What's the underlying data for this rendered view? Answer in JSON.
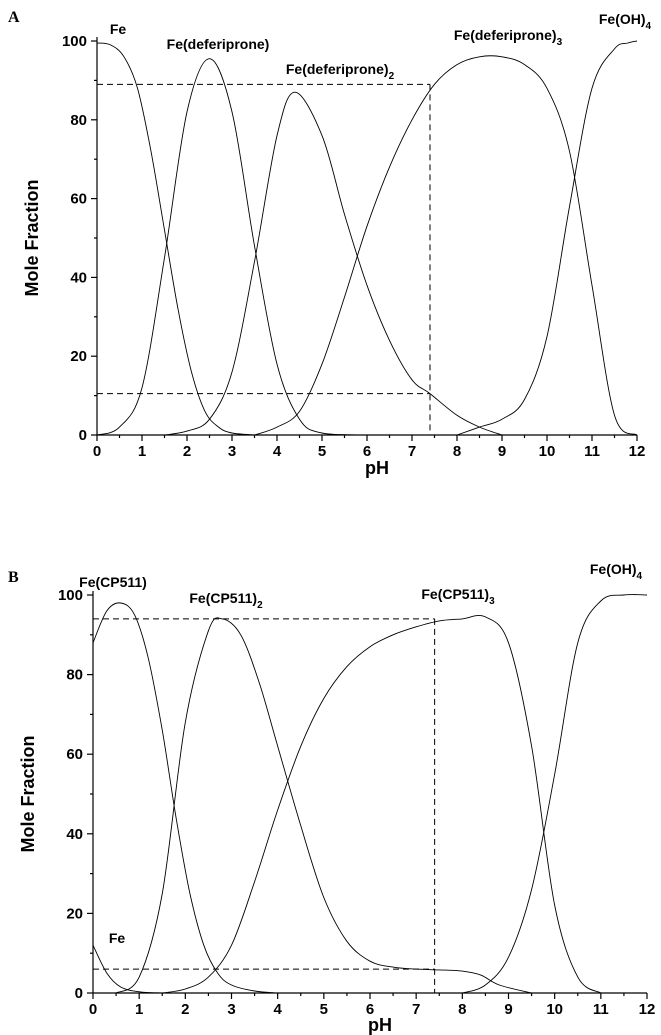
{
  "chart_data": [
    {
      "panel": "A",
      "type": "line",
      "xlabel": "pH",
      "ylabel": "Mole Fraction",
      "xlim": [
        0,
        12
      ],
      "ylim": [
        0,
        100
      ],
      "xticks": [
        "0",
        "1",
        "2",
        "3",
        "4",
        "5",
        "6",
        "7",
        "8",
        "9",
        "10",
        "11",
        "12"
      ],
      "yticks": [
        "0",
        "20",
        "40",
        "60",
        "80",
        "100"
      ],
      "series": [
        {
          "name": "Fe",
          "sub": "",
          "x": [
            0,
            0.3,
            0.6,
            0.9,
            1.2,
            1.5,
            1.8,
            2.1,
            2.4,
            2.7,
            3.0,
            3.5
          ],
          "y": [
            99.5,
            99,
            96,
            88,
            72,
            52,
            32,
            16,
            6,
            2,
            0.5,
            0
          ]
        },
        {
          "name": "Fe(deferiprone)",
          "sub": "",
          "x": [
            0,
            0.5,
            1.0,
            1.5,
            2.0,
            2.5,
            3.0,
            3.5,
            4.0,
            4.5,
            5.0,
            6.0
          ],
          "y": [
            0,
            2,
            12,
            45,
            82,
            95.5,
            82,
            48,
            18,
            4,
            0.5,
            0
          ]
        },
        {
          "name": "Fe(deferiprone)",
          "sub": "2",
          "x": [
            1.5,
            2.0,
            2.5,
            3.0,
            3.5,
            4.0,
            4.4,
            5.0,
            5.5,
            6.0,
            6.5,
            7.0,
            7.4,
            8.0,
            8.5,
            9.0
          ],
          "y": [
            0,
            1,
            4,
            16,
            44,
            76,
            87,
            76,
            56,
            38,
            24,
            14,
            10.5,
            5,
            2,
            0
          ]
        },
        {
          "name": "Fe(deferiprone)",
          "sub": "3",
          "x": [
            3.5,
            4.0,
            4.5,
            5.0,
            5.5,
            6.0,
            6.5,
            7.0,
            7.5,
            8.0,
            8.5,
            9.0,
            9.5,
            10.0,
            10.5,
            11.0,
            11.5,
            12.0
          ],
          "y": [
            0,
            2,
            6,
            18,
            35,
            53,
            68,
            80,
            89,
            94,
            96,
            96,
            94,
            88,
            72,
            38,
            5,
            0
          ]
        },
        {
          "name": "Fe(OH)",
          "sub": "4",
          "x": [
            8.0,
            8.5,
            9.0,
            9.5,
            10.0,
            10.5,
            11.0,
            11.5,
            11.8,
            12.0
          ],
          "y": [
            0,
            2,
            4,
            9,
            25,
            58,
            88,
            98,
            99.5,
            100
          ]
        }
      ],
      "reference_lines": {
        "x": 7.4,
        "y": [
          89,
          10.5
        ]
      }
    },
    {
      "panel": "B",
      "type": "line",
      "xlabel": "pH",
      "ylabel": "Mole Fraction",
      "xlim": [
        0,
        12
      ],
      "ylim": [
        0,
        100
      ],
      "xticks": [
        "0",
        "1",
        "2",
        "3",
        "4",
        "5",
        "6",
        "7",
        "8",
        "9",
        "10",
        "11",
        "12"
      ],
      "yticks": [
        "0",
        "20",
        "40",
        "60",
        "80",
        "100"
      ],
      "series": [
        {
          "name": "Fe(CP511)",
          "sub": "",
          "x": [
            0,
            0.3,
            0.6,
            0.9,
            1.2,
            1.5,
            1.8,
            2.1,
            2.4,
            2.7,
            3.0,
            3.5,
            4.0
          ],
          "y": [
            88,
            96,
            98,
            95,
            84,
            66,
            44,
            25,
            12,
            5,
            2,
            0.5,
            0
          ]
        },
        {
          "name": "Fe(CP511)",
          "sub": "2",
          "x": [
            0.5,
            1.0,
            1.5,
            2.0,
            2.5,
            2.8,
            3.2,
            3.6,
            4.0,
            4.5,
            5.0,
            5.5,
            6.0,
            6.5,
            7.0,
            7.5,
            8.0,
            8.4,
            8.8,
            9.5
          ],
          "y": [
            0,
            4,
            25,
            68,
            91,
            94,
            90,
            78,
            62,
            42,
            24,
            13,
            8,
            6.5,
            6,
            5.8,
            5.5,
            4.5,
            2,
            0
          ]
        },
        {
          "name": "Fe(CP511)",
          "sub": "3",
          "x": [
            1.5,
            2.0,
            2.5,
            3.0,
            3.5,
            4.0,
            4.5,
            5.0,
            5.5,
            6.0,
            6.5,
            7.0,
            7.5,
            8.0,
            8.5,
            9.0,
            9.5,
            10.0,
            10.5,
            11.0
          ],
          "y": [
            0,
            1,
            4,
            12,
            28,
            46,
            62,
            74,
            82,
            87,
            90,
            92,
            93.5,
            94,
            94.5,
            88,
            62,
            22,
            4,
            0
          ]
        },
        {
          "name": "Fe(OH)",
          "sub": "4",
          "x": [
            8.0,
            8.5,
            9.0,
            9.5,
            10.0,
            10.5,
            11.0,
            11.5,
            12.0
          ],
          "y": [
            0,
            2,
            9,
            26,
            55,
            88,
            98.5,
            100,
            100
          ]
        },
        {
          "name": "Fe",
          "sub": "",
          "x": [
            0,
            0.3,
            0.6,
            1.0,
            1.5
          ],
          "y": [
            12,
            5,
            1.5,
            0.3,
            0
          ]
        }
      ],
      "reference_lines": {
        "x": 7.4,
        "y": [
          94,
          6
        ]
      }
    }
  ]
}
